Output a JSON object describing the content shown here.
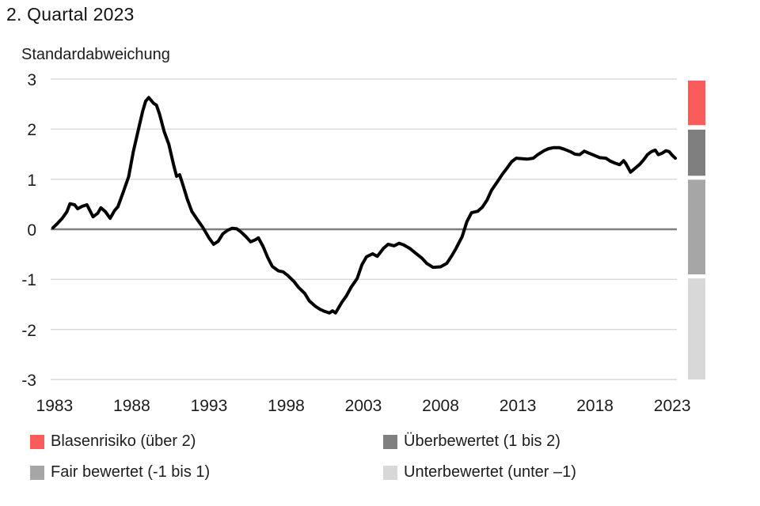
{
  "title": "2. Quartal 2023",
  "colors": {
    "line": "#000000",
    "grid": "#d9d9d9",
    "zero_line": "#7f7f7f",
    "bubble_red": "#fa5c5c",
    "overvalued_dark_gray": "#7f7f7f",
    "fair_gray": "#a6a6a6",
    "undervalued_light_gray": "#d8d8d8",
    "text": "#1c1c1c"
  },
  "chart_data": {
    "type": "line",
    "title": "2. Quartal 2023",
    "ylabel": "Standardabweichung",
    "xlabel": "",
    "xlim": [
      1982.75,
      2023.3
    ],
    "ylim": [
      -3,
      3
    ],
    "xticks": [
      1983,
      1988,
      1993,
      1998,
      2003,
      2008,
      2013,
      2018,
      2023
    ],
    "yticks": [
      3,
      2,
      1,
      0,
      -1,
      -2,
      -3
    ],
    "grid": "horizontal-only",
    "zero_line": true,
    "legend_position": "bottom",
    "zones": [
      {
        "label": "Blasenrisiko (über 2)",
        "color": "#fa5c5c",
        "from": 2.97,
        "to": 2.08
      },
      {
        "label": "Überbewertet (1 bis 2)",
        "color": "#7f7f7f",
        "from": 1.99,
        "to": 1.07
      },
      {
        "label": "Fair bewertet (-1 bis 1)",
        "color": "#a6a6a6",
        "from": 0.99,
        "to": -0.9
      },
      {
        "label": "Unterbewertet (unter –1)",
        "color": "#d8d8d8",
        "from": -0.98,
        "to": -3.0
      }
    ],
    "series": [
      {
        "points": [
          [
            1982.9,
            0.03
          ],
          [
            1983.2,
            0.12
          ],
          [
            1983.5,
            0.22
          ],
          [
            1983.8,
            0.35
          ],
          [
            1984.0,
            0.51
          ],
          [
            1984.3,
            0.49
          ],
          [
            1984.5,
            0.41
          ],
          [
            1984.8,
            0.46
          ],
          [
            1985.1,
            0.49
          ],
          [
            1985.5,
            0.25
          ],
          [
            1985.8,
            0.32
          ],
          [
            1986.0,
            0.43
          ],
          [
            1986.3,
            0.35
          ],
          [
            1986.6,
            0.22
          ],
          [
            1986.9,
            0.38
          ],
          [
            1987.1,
            0.45
          ],
          [
            1987.4,
            0.7
          ],
          [
            1987.8,
            1.05
          ],
          [
            1988.1,
            1.55
          ],
          [
            1988.4,
            1.95
          ],
          [
            1988.7,
            2.35
          ],
          [
            1988.9,
            2.56
          ],
          [
            1989.1,
            2.63
          ],
          [
            1989.4,
            2.52
          ],
          [
            1989.6,
            2.48
          ],
          [
            1989.8,
            2.3
          ],
          [
            1990.1,
            1.95
          ],
          [
            1990.4,
            1.7
          ],
          [
            1990.7,
            1.3
          ],
          [
            1990.9,
            1.06
          ],
          [
            1991.1,
            1.09
          ],
          [
            1991.3,
            0.9
          ],
          [
            1991.6,
            0.6
          ],
          [
            1991.9,
            0.35
          ],
          [
            1992.3,
            0.17
          ],
          [
            1992.6,
            0.04
          ],
          [
            1993.0,
            -0.17
          ],
          [
            1993.3,
            -0.3
          ],
          [
            1993.6,
            -0.24
          ],
          [
            1993.9,
            -0.09
          ],
          [
            1994.2,
            -0.02
          ],
          [
            1994.5,
            0.02
          ],
          [
            1994.8,
            0.01
          ],
          [
            1995.1,
            -0.06
          ],
          [
            1995.4,
            -0.15
          ],
          [
            1995.7,
            -0.25
          ],
          [
            1996.0,
            -0.21
          ],
          [
            1996.2,
            -0.17
          ],
          [
            1996.5,
            -0.34
          ],
          [
            1996.8,
            -0.56
          ],
          [
            1997.1,
            -0.74
          ],
          [
            1997.5,
            -0.83
          ],
          [
            1997.8,
            -0.85
          ],
          [
            1998.1,
            -0.92
          ],
          [
            1998.5,
            -1.04
          ],
          [
            1998.8,
            -1.16
          ],
          [
            1999.2,
            -1.28
          ],
          [
            1999.5,
            -1.43
          ],
          [
            1999.9,
            -1.54
          ],
          [
            2000.2,
            -1.6
          ],
          [
            2000.5,
            -1.64
          ],
          [
            2000.8,
            -1.67
          ],
          [
            2001.0,
            -1.63
          ],
          [
            2001.2,
            -1.67
          ],
          [
            2001.6,
            -1.46
          ],
          [
            2001.9,
            -1.33
          ],
          [
            2002.2,
            -1.16
          ],
          [
            2002.6,
            -0.98
          ],
          [
            2002.9,
            -0.71
          ],
          [
            2003.2,
            -0.55
          ],
          [
            2003.6,
            -0.49
          ],
          [
            2003.9,
            -0.54
          ],
          [
            2004.3,
            -0.38
          ],
          [
            2004.6,
            -0.3
          ],
          [
            2005.0,
            -0.33
          ],
          [
            2005.3,
            -0.28
          ],
          [
            2005.6,
            -0.31
          ],
          [
            2006.0,
            -0.38
          ],
          [
            2006.4,
            -0.48
          ],
          [
            2006.8,
            -0.58
          ],
          [
            2007.1,
            -0.68
          ],
          [
            2007.5,
            -0.76
          ],
          [
            2008.0,
            -0.75
          ],
          [
            2008.4,
            -0.68
          ],
          [
            2008.7,
            -0.54
          ],
          [
            2009.0,
            -0.38
          ],
          [
            2009.4,
            -0.14
          ],
          [
            2009.7,
            0.15
          ],
          [
            2010.0,
            0.33
          ],
          [
            2010.4,
            0.36
          ],
          [
            2010.7,
            0.44
          ],
          [
            2011.0,
            0.58
          ],
          [
            2011.3,
            0.78
          ],
          [
            2011.7,
            0.96
          ],
          [
            2012.0,
            1.1
          ],
          [
            2012.3,
            1.22
          ],
          [
            2012.6,
            1.35
          ],
          [
            2012.9,
            1.42
          ],
          [
            2013.3,
            1.41
          ],
          [
            2013.6,
            1.4
          ],
          [
            2014.0,
            1.42
          ],
          [
            2014.3,
            1.49
          ],
          [
            2014.7,
            1.57
          ],
          [
            2015.0,
            1.61
          ],
          [
            2015.3,
            1.63
          ],
          [
            2015.7,
            1.63
          ],
          [
            2016.0,
            1.6
          ],
          [
            2016.4,
            1.55
          ],
          [
            2016.7,
            1.5
          ],
          [
            2017.0,
            1.49
          ],
          [
            2017.3,
            1.56
          ],
          [
            2017.6,
            1.52
          ],
          [
            2018.0,
            1.47
          ],
          [
            2018.3,
            1.43
          ],
          [
            2018.7,
            1.42
          ],
          [
            2019.0,
            1.36
          ],
          [
            2019.3,
            1.32
          ],
          [
            2019.6,
            1.29
          ],
          [
            2019.85,
            1.37
          ],
          [
            2020.0,
            1.31
          ],
          [
            2020.3,
            1.14
          ],
          [
            2020.6,
            1.22
          ],
          [
            2020.9,
            1.3
          ],
          [
            2021.15,
            1.39
          ],
          [
            2021.4,
            1.49
          ],
          [
            2021.65,
            1.55
          ],
          [
            2021.9,
            1.58
          ],
          [
            2022.1,
            1.49
          ],
          [
            2022.35,
            1.52
          ],
          [
            2022.6,
            1.57
          ],
          [
            2022.8,
            1.55
          ],
          [
            2023.0,
            1.48
          ],
          [
            2023.2,
            1.42
          ]
        ]
      }
    ]
  },
  "legend": {
    "items": [
      {
        "label": "Blasenrisiko (über 2)",
        "color": "#fa5c5c"
      },
      {
        "label": "Überbewertet (1 bis 2)",
        "color": "#7f7f7f"
      },
      {
        "label": "Fair bewertet (-1 bis 1)",
        "color": "#a6a6a6"
      },
      {
        "label": "Unterbewertet (unter –1)",
        "color": "#d8d8d8"
      }
    ]
  }
}
